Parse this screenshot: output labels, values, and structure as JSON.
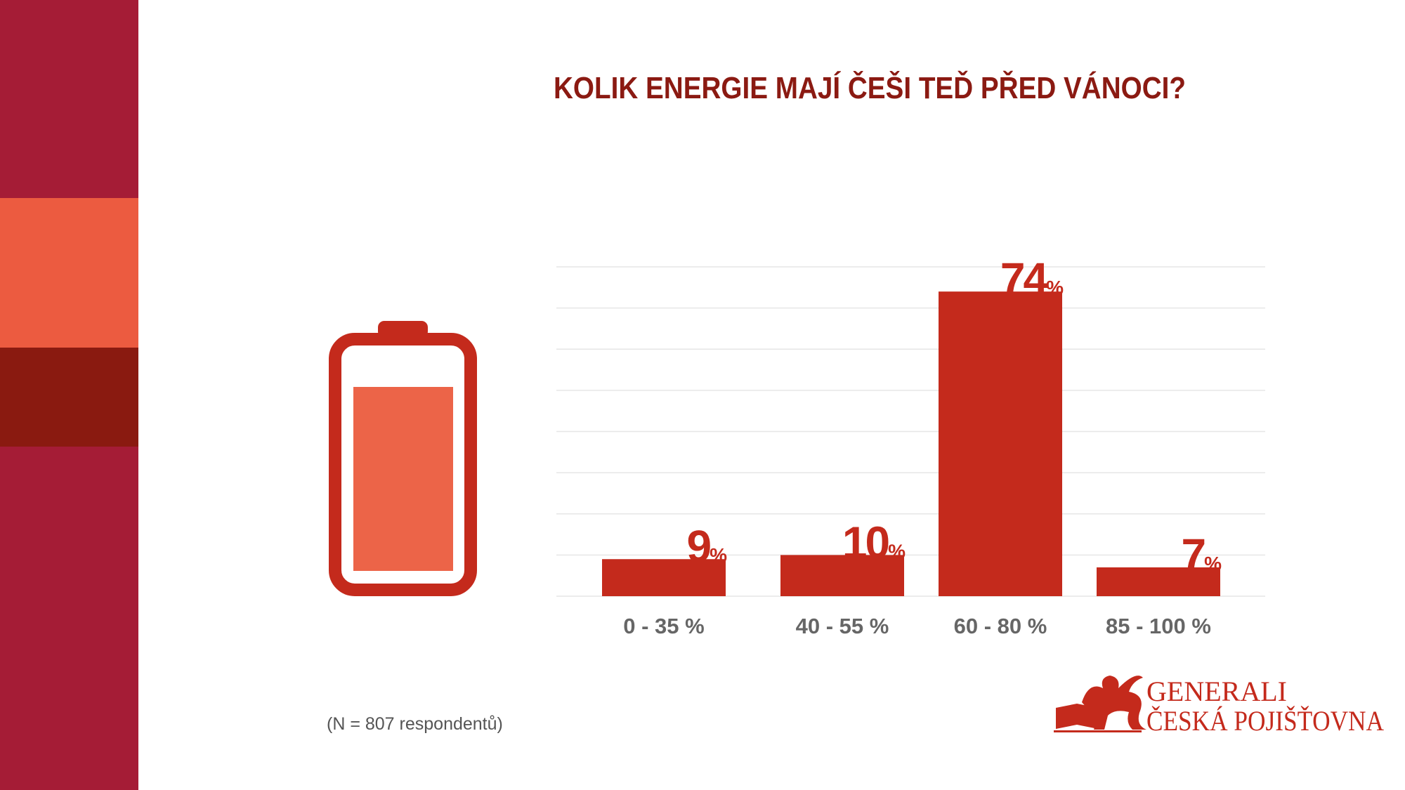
{
  "chart_data": {
    "type": "bar",
    "title": "KOLIK ENERGIE MAJÍ ČEŠI TEĎ PŘED VÁNOCI?",
    "categories": [
      "0 - 35 %",
      "40 - 55 %",
      "60 - 80 %",
      "85 - 100 %"
    ],
    "values": [
      9,
      10,
      74,
      7
    ],
    "value_labels": [
      "9%",
      "10%",
      "74%",
      "7%"
    ],
    "color": "#c42a1c",
    "ylim": [
      0,
      80
    ],
    "yticks": [
      0,
      10,
      20,
      30,
      40,
      50,
      60,
      70,
      80
    ],
    "grid": true
  },
  "footnote": "(N = 807 respondentů)",
  "logo": {
    "line1": "GENERALI",
    "line2": "ČESKÁ POJIŠŤOVNA"
  }
}
